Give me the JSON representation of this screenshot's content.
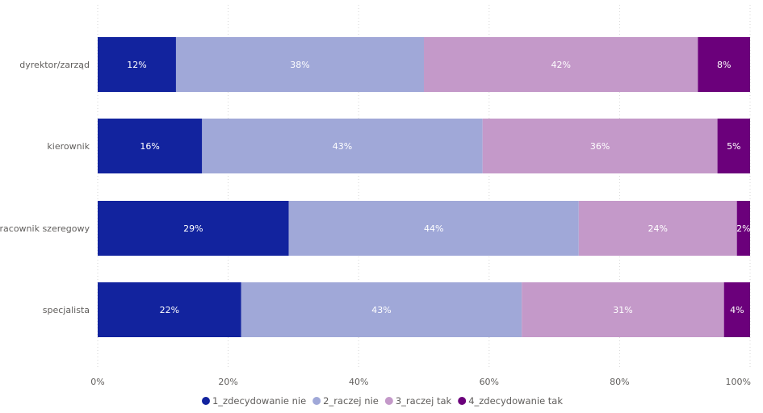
{
  "chart_data": {
    "type": "bar",
    "orientation": "horizontal",
    "stacked": "percent",
    "categories": [
      "dyrektor/zarząd",
      "kierownik",
      "pracownik szeregowy",
      "specjalista"
    ],
    "series": [
      {
        "name": "1_zdecydowanie nie",
        "color": "#12239e",
        "label_color": "#ffffff",
        "values": [
          12,
          16,
          29,
          22
        ],
        "labels": [
          "12%",
          "16%",
          "29%",
          "22%"
        ]
      },
      {
        "name": "2_raczej nie",
        "color": "#a0a8d8",
        "label_color": "#ffffff",
        "values": [
          38,
          43,
          44,
          43
        ],
        "labels": [
          "38%",
          "43%",
          "44%",
          "43%"
        ]
      },
      {
        "name": "3_raczej tak",
        "color": "#c499c9",
        "label_color": "#ffffff",
        "values": [
          42,
          36,
          24,
          31
        ],
        "labels": [
          "42%",
          "36%",
          "24%",
          "31%"
        ]
      },
      {
        "name": "4_zdecydowanie tak",
        "color": "#6b007b",
        "label_color": "#ffffff",
        "values": [
          8,
          5,
          2,
          4
        ],
        "labels": [
          "8%",
          "5%",
          "2%",
          "4%"
        ]
      }
    ],
    "x_ticks": [
      0,
      20,
      40,
      60,
      80,
      100
    ],
    "x_tick_labels": [
      "0%",
      "20%",
      "40%",
      "60%",
      "80%",
      "100%"
    ],
    "xlim": [
      0,
      100
    ],
    "grid": "vertical-dotted",
    "legend_position": "bottom-center",
    "title": "",
    "xlabel": "",
    "ylabel": ""
  }
}
